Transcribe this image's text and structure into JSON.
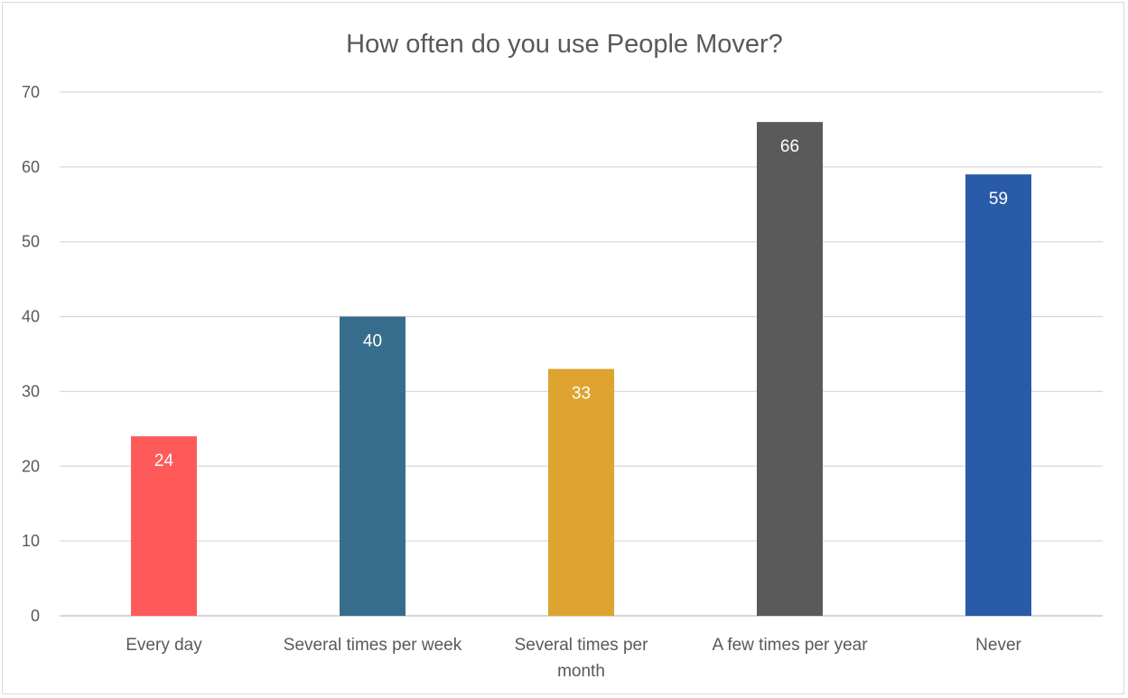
{
  "chart_data": {
    "type": "bar",
    "title": "How often do you use People Mover?",
    "xlabel": "",
    "ylabel": "",
    "categories": [
      "Every day",
      "Several times per week",
      "Several times per month",
      "A few times per year",
      "Never"
    ],
    "category_lines": [
      [
        "Every day"
      ],
      [
        "Several times per week"
      ],
      [
        "Several times per",
        "month"
      ],
      [
        "A few times per year"
      ],
      [
        "Never"
      ]
    ],
    "values": [
      24,
      40,
      33,
      66,
      59
    ],
    "colors": [
      "#ff5a5a",
      "#376d8c",
      "#dea42f",
      "#595a59",
      "#2a5ba8"
    ],
    "ylim": [
      0,
      70
    ],
    "yticks": [
      0,
      10,
      20,
      30,
      40,
      50,
      60,
      70
    ],
    "grid": true,
    "legend": "none",
    "data_labels": true
  }
}
